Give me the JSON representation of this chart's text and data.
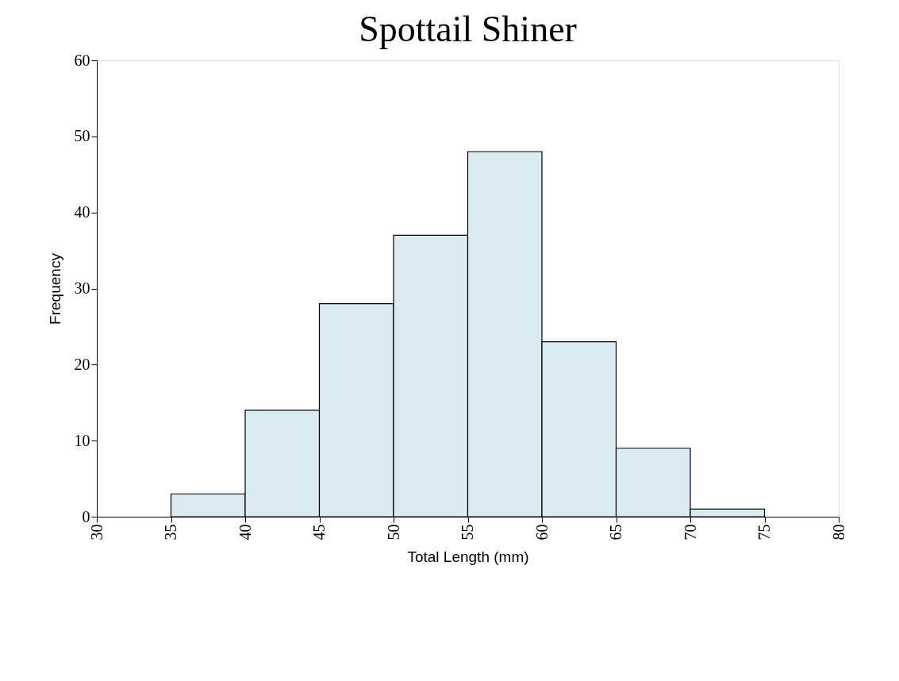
{
  "chart_data": {
    "type": "histogram",
    "title": "Spottail Shiner",
    "xlabel": "Total Length (mm)",
    "ylabel": "Frequency",
    "bins": [
      35,
      40,
      45,
      50,
      55,
      60,
      65,
      70,
      75
    ],
    "values": [
      3,
      14,
      28,
      37,
      48,
      23,
      9,
      1
    ],
    "color": "#daecf2",
    "xlim": [
      30,
      80
    ],
    "xticks": [
      30,
      35,
      40,
      45,
      50,
      55,
      60,
      65,
      70,
      75,
      80
    ],
    "ylim": [
      0,
      60
    ],
    "yticks": [
      0,
      10,
      20,
      30,
      40,
      50,
      60
    ],
    "grid": false
  }
}
